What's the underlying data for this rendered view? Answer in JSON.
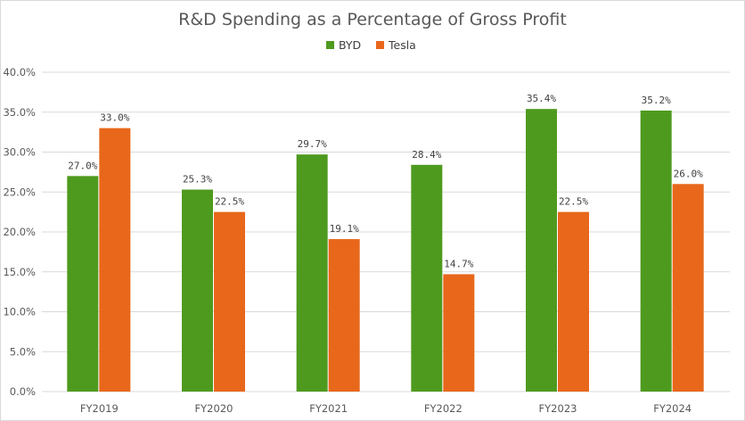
{
  "chart_data": {
    "type": "bar",
    "title": "R&D Spending as a Percentage of Gross Profit",
    "categories": [
      "FY2019",
      "FY2020",
      "FY2021",
      "FY2022",
      "FY2023",
      "FY2024"
    ],
    "series": [
      {
        "name": "BYD",
        "color": "#4e9a1e",
        "values": [
          27.0,
          25.3,
          29.7,
          28.4,
          35.4,
          35.2
        ]
      },
      {
        "name": "Tesla",
        "color": "#e8671b",
        "values": [
          33.0,
          22.5,
          19.1,
          14.7,
          22.5,
          26.0
        ]
      }
    ],
    "data_labels": [
      [
        "27.0%",
        "25.3%",
        "29.7%",
        "28.4%",
        "35.4%",
        "35.2%"
      ],
      [
        "33.0%",
        "22.5%",
        "19.1%",
        "14.7%",
        "22.5%",
        "26.0%"
      ]
    ],
    "yticks": [
      0,
      5,
      10,
      15,
      20,
      25,
      30,
      35,
      40
    ],
    "ytick_labels": [
      "0.0%",
      "5.0%",
      "10.0%",
      "15.0%",
      "20.0%",
      "25.0%",
      "30.0%",
      "35.0%",
      "40.0%"
    ],
    "ylim": [
      0,
      40
    ],
    "xlabel": "",
    "ylabel": "",
    "legend_position": "top-center",
    "grid": true
  }
}
